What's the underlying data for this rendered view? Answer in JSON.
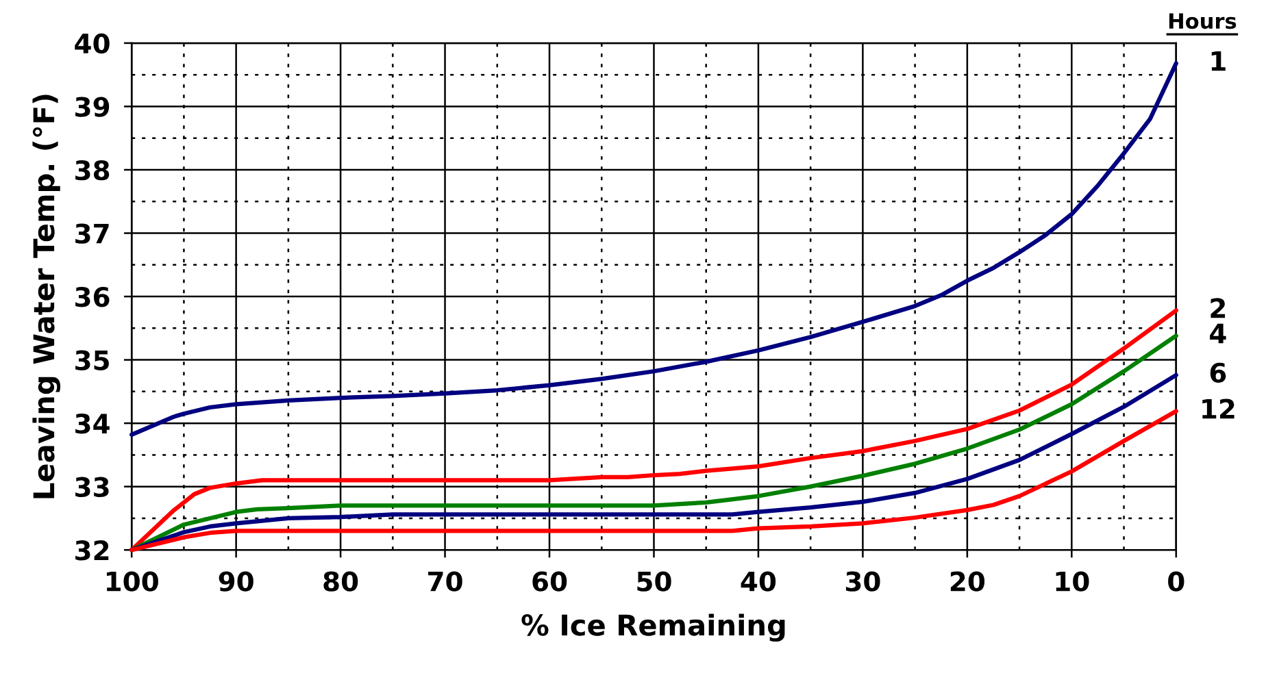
{
  "chart_data": {
    "type": "line",
    "xlabel": "% Ice Remaining",
    "ylabel": "Leaving Water Temp. (°F)",
    "legend_title": "Hours",
    "xlim": [
      100,
      0
    ],
    "xticks": [
      100,
      90,
      80,
      70,
      60,
      50,
      40,
      30,
      20,
      10,
      0
    ],
    "ylim": [
      32,
      40
    ],
    "yticks": [
      32,
      33,
      34,
      35,
      36,
      37,
      38,
      39,
      40
    ],
    "grid": true,
    "legend": "right",
    "line_style": "solid",
    "marker": "none",
    "series": [
      {
        "name": "1",
        "color": "#000080",
        "x": [
          100,
          96,
          95,
          92.5,
          90,
          85,
          80,
          75,
          70,
          65,
          60,
          55,
          50,
          45,
          40,
          35,
          30,
          25,
          22.5,
          20,
          17.5,
          15,
          12.5,
          10,
          7.5,
          5,
          2.5,
          0
        ],
        "values": [
          33.82,
          34.1,
          34.15,
          34.25,
          34.3,
          34.36,
          34.4,
          34.43,
          34.47,
          34.52,
          34.6,
          34.7,
          34.82,
          34.97,
          35.15,
          35.36,
          35.6,
          35.85,
          36.02,
          36.25,
          36.45,
          36.7,
          36.97,
          37.3,
          37.75,
          38.26,
          38.8,
          39.68
        ]
      },
      {
        "name": "2",
        "color": "#ff0000",
        "x": [
          100,
          96,
          94,
          92.5,
          90,
          87.5,
          85,
          80,
          70,
          60,
          55,
          52.5,
          50,
          47.5,
          45,
          40,
          35,
          30,
          25,
          20,
          15,
          10,
          5,
          0
        ],
        "values": [
          32.0,
          32.62,
          32.88,
          32.98,
          33.05,
          33.1,
          33.1,
          33.1,
          33.1,
          33.1,
          33.15,
          33.15,
          33.18,
          33.2,
          33.25,
          33.32,
          33.45,
          33.56,
          33.72,
          33.91,
          34.2,
          34.61,
          35.18,
          35.78
        ]
      },
      {
        "name": "4",
        "color": "#008000",
        "x": [
          100,
          95,
          92.5,
          90,
          88,
          85,
          80,
          70,
          60,
          50,
          45,
          40,
          35,
          30,
          25,
          20,
          15,
          10,
          5,
          0
        ],
        "values": [
          32.0,
          32.4,
          32.5,
          32.6,
          32.64,
          32.66,
          32.7,
          32.7,
          32.7,
          32.7,
          32.75,
          32.85,
          33.0,
          33.17,
          33.36,
          33.6,
          33.9,
          34.3,
          34.82,
          35.38
        ]
      },
      {
        "name": "6",
        "color": "#000080",
        "x": [
          100,
          95,
          92.5,
          90,
          85,
          80,
          75,
          65,
          55,
          45,
          42.5,
          40,
          35,
          30,
          25,
          20,
          15,
          10,
          5,
          0
        ],
        "values": [
          32.0,
          32.28,
          32.37,
          32.42,
          32.5,
          32.52,
          32.56,
          32.56,
          32.56,
          32.56,
          32.56,
          32.6,
          32.67,
          32.76,
          32.9,
          33.12,
          33.42,
          33.83,
          34.26,
          34.76
        ]
      },
      {
        "name": "12",
        "color": "#ff0000",
        "x": [
          100,
          95,
          92.5,
          90,
          80,
          70,
          60,
          50,
          42.5,
          40,
          35,
          30,
          25,
          20,
          17.5,
          15,
          10,
          5,
          0
        ],
        "values": [
          32.0,
          32.2,
          32.27,
          32.3,
          32.3,
          32.3,
          32.3,
          32.3,
          32.3,
          32.34,
          32.37,
          32.42,
          32.51,
          32.63,
          32.71,
          32.85,
          33.24,
          33.72,
          34.19
        ]
      }
    ]
  }
}
